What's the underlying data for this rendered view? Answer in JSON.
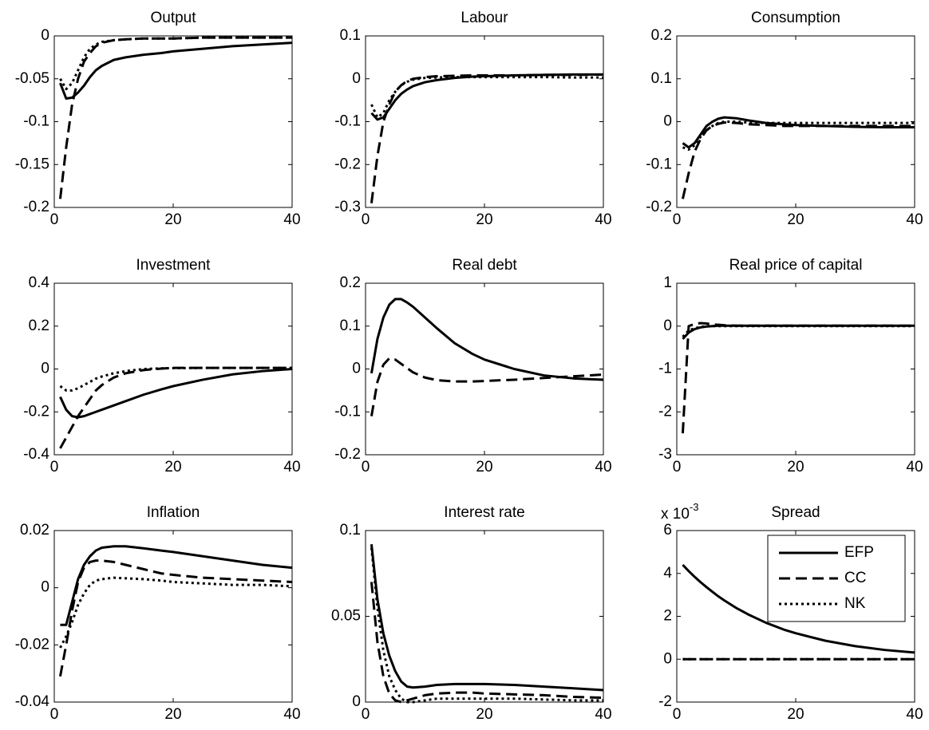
{
  "chart_data": [
    {
      "type": "line",
      "title": "Output",
      "x": [
        1,
        2,
        3,
        4,
        5,
        6,
        7,
        8,
        10,
        12,
        15,
        18,
        20,
        25,
        30,
        35,
        40
      ],
      "xlim": [
        0,
        40
      ],
      "xticks": [
        0,
        20,
        40
      ],
      "ylim": [
        -0.2,
        0
      ],
      "yticks": [
        -0.2,
        -0.15,
        -0.1,
        -0.05,
        0
      ],
      "series": [
        {
          "name": "EFP",
          "color": "#000000",
          "line_style": "solid",
          "values": [
            -0.055,
            -0.073,
            -0.072,
            -0.066,
            -0.058,
            -0.048,
            -0.04,
            -0.035,
            -0.028,
            -0.025,
            -0.022,
            -0.02,
            -0.018,
            -0.015,
            -0.012,
            -0.01,
            -0.008
          ]
        },
        {
          "name": "CC",
          "color": "#000000",
          "line_style": "dashed",
          "values": [
            -0.19,
            -0.13,
            -0.08,
            -0.05,
            -0.03,
            -0.02,
            -0.012,
            -0.008,
            -0.005,
            -0.004,
            -0.003,
            -0.003,
            -0.003,
            -0.002,
            -0.002,
            -0.002,
            -0.002
          ]
        },
        {
          "name": "NK",
          "color": "#000000",
          "line_style": "dotted",
          "values": [
            -0.05,
            -0.062,
            -0.055,
            -0.04,
            -0.025,
            -0.015,
            -0.01,
            -0.007,
            -0.005,
            -0.004,
            -0.003,
            -0.003,
            -0.003,
            -0.002,
            -0.002,
            -0.002,
            -0.002
          ]
        }
      ]
    },
    {
      "type": "line",
      "title": "Labour",
      "x": [
        1,
        2,
        3,
        4,
        5,
        6,
        7,
        8,
        10,
        12,
        15,
        18,
        20,
        25,
        30,
        35,
        40
      ],
      "xlim": [
        0,
        40
      ],
      "xticks": [
        0,
        20,
        40
      ],
      "ylim": [
        -0.3,
        0.1
      ],
      "yticks": [
        -0.3,
        -0.2,
        -0.1,
        0,
        0.1
      ],
      "series": [
        {
          "name": "EFP",
          "color": "#000000",
          "line_style": "solid",
          "values": [
            -0.08,
            -0.095,
            -0.09,
            -0.07,
            -0.05,
            -0.035,
            -0.025,
            -0.017,
            -0.008,
            -0.003,
            0.002,
            0.005,
            0.006,
            0.008,
            0.009,
            0.01,
            0.01
          ]
        },
        {
          "name": "CC",
          "color": "#000000",
          "line_style": "dashed",
          "values": [
            -0.29,
            -0.18,
            -0.1,
            -0.06,
            -0.03,
            -0.015,
            -0.005,
            0,
            0.004,
            0.006,
            0.007,
            0.008,
            0.008,
            0.008,
            0.009,
            0.009,
            0.01
          ]
        },
        {
          "name": "NK",
          "color": "#000000",
          "line_style": "dotted",
          "values": [
            -0.06,
            -0.09,
            -0.08,
            -0.05,
            -0.03,
            -0.015,
            -0.007,
            -0.002,
            0.002,
            0.003,
            0.004,
            0.004,
            0.004,
            0.004,
            0.004,
            0.003,
            0.003
          ]
        }
      ]
    },
    {
      "type": "line",
      "title": "Consumption",
      "x": [
        1,
        2,
        3,
        4,
        5,
        6,
        7,
        8,
        10,
        12,
        15,
        18,
        20,
        25,
        30,
        35,
        40
      ],
      "xlim": [
        0,
        40
      ],
      "xticks": [
        0,
        20,
        40
      ],
      "ylim": [
        -0.2,
        0.2
      ],
      "yticks": [
        -0.2,
        -0.1,
        0,
        0.1,
        0.2
      ],
      "series": [
        {
          "name": "EFP",
          "color": "#000000",
          "line_style": "solid",
          "values": [
            -0.05,
            -0.06,
            -0.05,
            -0.03,
            -0.01,
            0,
            0.007,
            0.01,
            0.008,
            0.003,
            -0.003,
            -0.006,
            -0.008,
            -0.01,
            -0.012,
            -0.013,
            -0.013
          ]
        },
        {
          "name": "CC",
          "color": "#000000",
          "line_style": "dashed",
          "values": [
            -0.18,
            -0.12,
            -0.07,
            -0.04,
            -0.02,
            -0.01,
            -0.005,
            -0.002,
            -0.003,
            -0.006,
            -0.008,
            -0.01,
            -0.01,
            -0.01,
            -0.01,
            -0.01,
            -0.01
          ]
        },
        {
          "name": "NK",
          "color": "#000000",
          "line_style": "dotted",
          "values": [
            -0.06,
            -0.065,
            -0.055,
            -0.035,
            -0.02,
            -0.01,
            -0.003,
            0,
            0,
            -0.002,
            -0.003,
            -0.003,
            -0.003,
            -0.003,
            -0.003,
            -0.003,
            -0.003
          ]
        }
      ]
    },
    {
      "type": "line",
      "title": "Investment",
      "x": [
        1,
        2,
        3,
        4,
        5,
        6,
        7,
        8,
        10,
        12,
        15,
        18,
        20,
        25,
        30,
        35,
        40
      ],
      "xlim": [
        0,
        40
      ],
      "xticks": [
        0,
        20,
        40
      ],
      "ylim": [
        -0.4,
        0.4
      ],
      "yticks": [
        -0.4,
        -0.2,
        0,
        0.2,
        0.4
      ],
      "series": [
        {
          "name": "EFP",
          "color": "#000000",
          "line_style": "solid",
          "values": [
            -0.13,
            -0.19,
            -0.22,
            -0.225,
            -0.22,
            -0.21,
            -0.2,
            -0.19,
            -0.17,
            -0.15,
            -0.12,
            -0.095,
            -0.08,
            -0.05,
            -0.025,
            -0.01,
            0
          ]
        },
        {
          "name": "CC",
          "color": "#000000",
          "line_style": "dashed",
          "values": [
            -0.37,
            -0.32,
            -0.27,
            -0.22,
            -0.18,
            -0.14,
            -0.1,
            -0.075,
            -0.04,
            -0.02,
            -0.005,
            0.002,
            0.005,
            0.005,
            0.005,
            0.005,
            0.005
          ]
        },
        {
          "name": "NK",
          "color": "#000000",
          "line_style": "dotted",
          "values": [
            -0.08,
            -0.1,
            -0.1,
            -0.09,
            -0.075,
            -0.06,
            -0.045,
            -0.035,
            -0.02,
            -0.01,
            0,
            0.003,
            0.004,
            0.005,
            0.005,
            0.005,
            0.005
          ]
        }
      ]
    },
    {
      "type": "line",
      "title": "Real debt",
      "x": [
        1,
        2,
        3,
        4,
        5,
        6,
        7,
        8,
        10,
        12,
        15,
        18,
        20,
        25,
        30,
        35,
        40
      ],
      "xlim": [
        0,
        40
      ],
      "xticks": [
        0,
        20,
        40
      ],
      "ylim": [
        -0.2,
        0.2
      ],
      "yticks": [
        -0.2,
        -0.1,
        0,
        0.1,
        0.2
      ],
      "series": [
        {
          "name": "EFP",
          "color": "#000000",
          "line_style": "solid",
          "values": [
            -0.01,
            0.07,
            0.12,
            0.15,
            0.163,
            0.163,
            0.155,
            0.145,
            0.12,
            0.095,
            0.06,
            0.035,
            0.022,
            0,
            -0.015,
            -0.022,
            -0.025
          ]
        },
        {
          "name": "CC",
          "color": "#000000",
          "line_style": "dashed",
          "values": [
            -0.11,
            -0.03,
            0.01,
            0.025,
            0.022,
            0.012,
            0.002,
            -0.008,
            -0.02,
            -0.026,
            -0.029,
            -0.029,
            -0.028,
            -0.025,
            -0.021,
            -0.017,
            -0.013
          ]
        }
      ]
    },
    {
      "type": "line",
      "title": "Real price of capital",
      "x": [
        1,
        2,
        3,
        4,
        5,
        6,
        7,
        8,
        10,
        12,
        15,
        18,
        20,
        25,
        30,
        35,
        40
      ],
      "xlim": [
        0,
        40
      ],
      "xticks": [
        0,
        20,
        40
      ],
      "ylim": [
        -3,
        1
      ],
      "yticks": [
        -3,
        -2,
        -1,
        0,
        1
      ],
      "series": [
        {
          "name": "EFP",
          "color": "#000000",
          "line_style": "solid",
          "values": [
            -0.3,
            -0.15,
            -0.07,
            -0.03,
            -0.01,
            0,
            0.01,
            0.01,
            0.01,
            0.01,
            0.01,
            0.01,
            0.01,
            0.01,
            0.01,
            0.01,
            0.01
          ]
        },
        {
          "name": "CC",
          "color": "#000000",
          "line_style": "dashed",
          "values": [
            -2.5,
            0,
            0.05,
            0.07,
            0.06,
            0.04,
            0.03,
            0.02,
            0.01,
            0.01,
            0.01,
            0.01,
            0.01,
            0.01,
            0.01,
            0.01,
            0.01
          ]
        },
        {
          "name": "NK",
          "color": "#000000",
          "line_style": "dotted",
          "values": [
            -0.25,
            -0.1,
            -0.05,
            -0.02,
            0,
            0,
            0,
            0,
            0,
            0,
            0,
            0,
            0,
            0,
            0,
            0,
            0
          ]
        }
      ]
    },
    {
      "type": "line",
      "title": "Inflation",
      "x": [
        1,
        2,
        3,
        4,
        5,
        6,
        7,
        8,
        10,
        12,
        15,
        18,
        20,
        25,
        30,
        35,
        40
      ],
      "xlim": [
        0,
        40
      ],
      "xticks": [
        0,
        20,
        40
      ],
      "ylim": [
        -0.04,
        0.02
      ],
      "yticks": [
        -0.04,
        -0.02,
        0,
        0.02
      ],
      "series": [
        {
          "name": "EFP",
          "color": "#000000",
          "line_style": "solid",
          "values": [
            -0.013,
            -0.013,
            -0.005,
            0.003,
            0.008,
            0.011,
            0.013,
            0.014,
            0.0145,
            0.0145,
            0.0138,
            0.013,
            0.0125,
            0.011,
            0.0095,
            0.008,
            0.007
          ]
        },
        {
          "name": "CC",
          "color": "#000000",
          "line_style": "dashed",
          "values": [
            -0.031,
            -0.02,
            -0.008,
            0.002,
            0.007,
            0.009,
            0.0095,
            0.0095,
            0.009,
            0.008,
            0.0065,
            0.005,
            0.0045,
            0.0035,
            0.003,
            0.0025,
            0.002
          ]
        },
        {
          "name": "NK",
          "color": "#000000",
          "line_style": "dotted",
          "values": [
            -0.021,
            -0.017,
            -0.012,
            -0.006,
            -0.002,
            0.001,
            0.0025,
            0.003,
            0.0035,
            0.0033,
            0.003,
            0.0025,
            0.002,
            0.0015,
            0.001,
            0.001,
            0.0005
          ]
        }
      ]
    },
    {
      "type": "line",
      "title": "Interest rate",
      "x": [
        1,
        2,
        3,
        4,
        5,
        6,
        7,
        8,
        10,
        12,
        15,
        18,
        20,
        25,
        30,
        35,
        40
      ],
      "xlim": [
        0,
        40
      ],
      "xticks": [
        0,
        20,
        40
      ],
      "ylim": [
        0,
        0.1
      ],
      "yticks": [
        0,
        0.05,
        0.1
      ],
      "series": [
        {
          "name": "EFP",
          "color": "#000000",
          "line_style": "solid",
          "values": [
            0.092,
            0.06,
            0.04,
            0.027,
            0.018,
            0.012,
            0.009,
            0.0085,
            0.009,
            0.01,
            0.0105,
            0.0105,
            0.0105,
            0.01,
            0.009,
            0.008,
            0.007
          ]
        },
        {
          "name": "CC",
          "color": "#000000",
          "line_style": "dashed",
          "values": [
            0.07,
            0.035,
            0.015,
            0.005,
            0.001,
            0,
            0.001,
            0.002,
            0.004,
            0.005,
            0.0055,
            0.0055,
            0.005,
            0.0045,
            0.004,
            0.003,
            0.0025
          ]
        },
        {
          "name": "NK",
          "color": "#000000",
          "line_style": "dotted",
          "values": [
            0.09,
            0.055,
            0.03,
            0.015,
            0.007,
            0.002,
            0,
            0,
            0.001,
            0.002,
            0.002,
            0.002,
            0.002,
            0.002,
            0.0015,
            0.001,
            0.001
          ]
        }
      ]
    },
    {
      "type": "line",
      "title": "Spread",
      "y_multiplier": {
        "base": "x 10",
        "exponent": "-3"
      },
      "legend": "upper right",
      "x": [
        1,
        2,
        3,
        4,
        5,
        6,
        7,
        8,
        10,
        12,
        15,
        18,
        20,
        25,
        30,
        35,
        40
      ],
      "xlim": [
        0,
        40
      ],
      "xticks": [
        0,
        20,
        40
      ],
      "ylim": [
        -2,
        6
      ],
      "yticks": [
        -2,
        0,
        2,
        4,
        6
      ],
      "series": [
        {
          "name": "EFP",
          "color": "#000000",
          "line_style": "solid",
          "values": [
            4.4,
            4.11,
            3.84,
            3.59,
            3.36,
            3.14,
            2.93,
            2.74,
            2.39,
            2.09,
            1.7,
            1.38,
            1.21,
            0.86,
            0.61,
            0.43,
            0.31
          ]
        },
        {
          "name": "CC",
          "color": "#000000",
          "line_style": "dashed",
          "values": [
            0,
            0,
            0,
            0,
            0,
            0,
            0,
            0,
            0,
            0,
            0,
            0,
            0,
            0,
            0,
            0,
            0
          ]
        },
        {
          "name": "NK",
          "color": "#000000",
          "line_style": "dotted",
          "values": [
            0,
            0,
            0,
            0,
            0,
            0,
            0,
            0,
            0,
            0,
            0,
            0,
            0,
            0,
            0,
            0,
            0
          ]
        }
      ]
    }
  ]
}
